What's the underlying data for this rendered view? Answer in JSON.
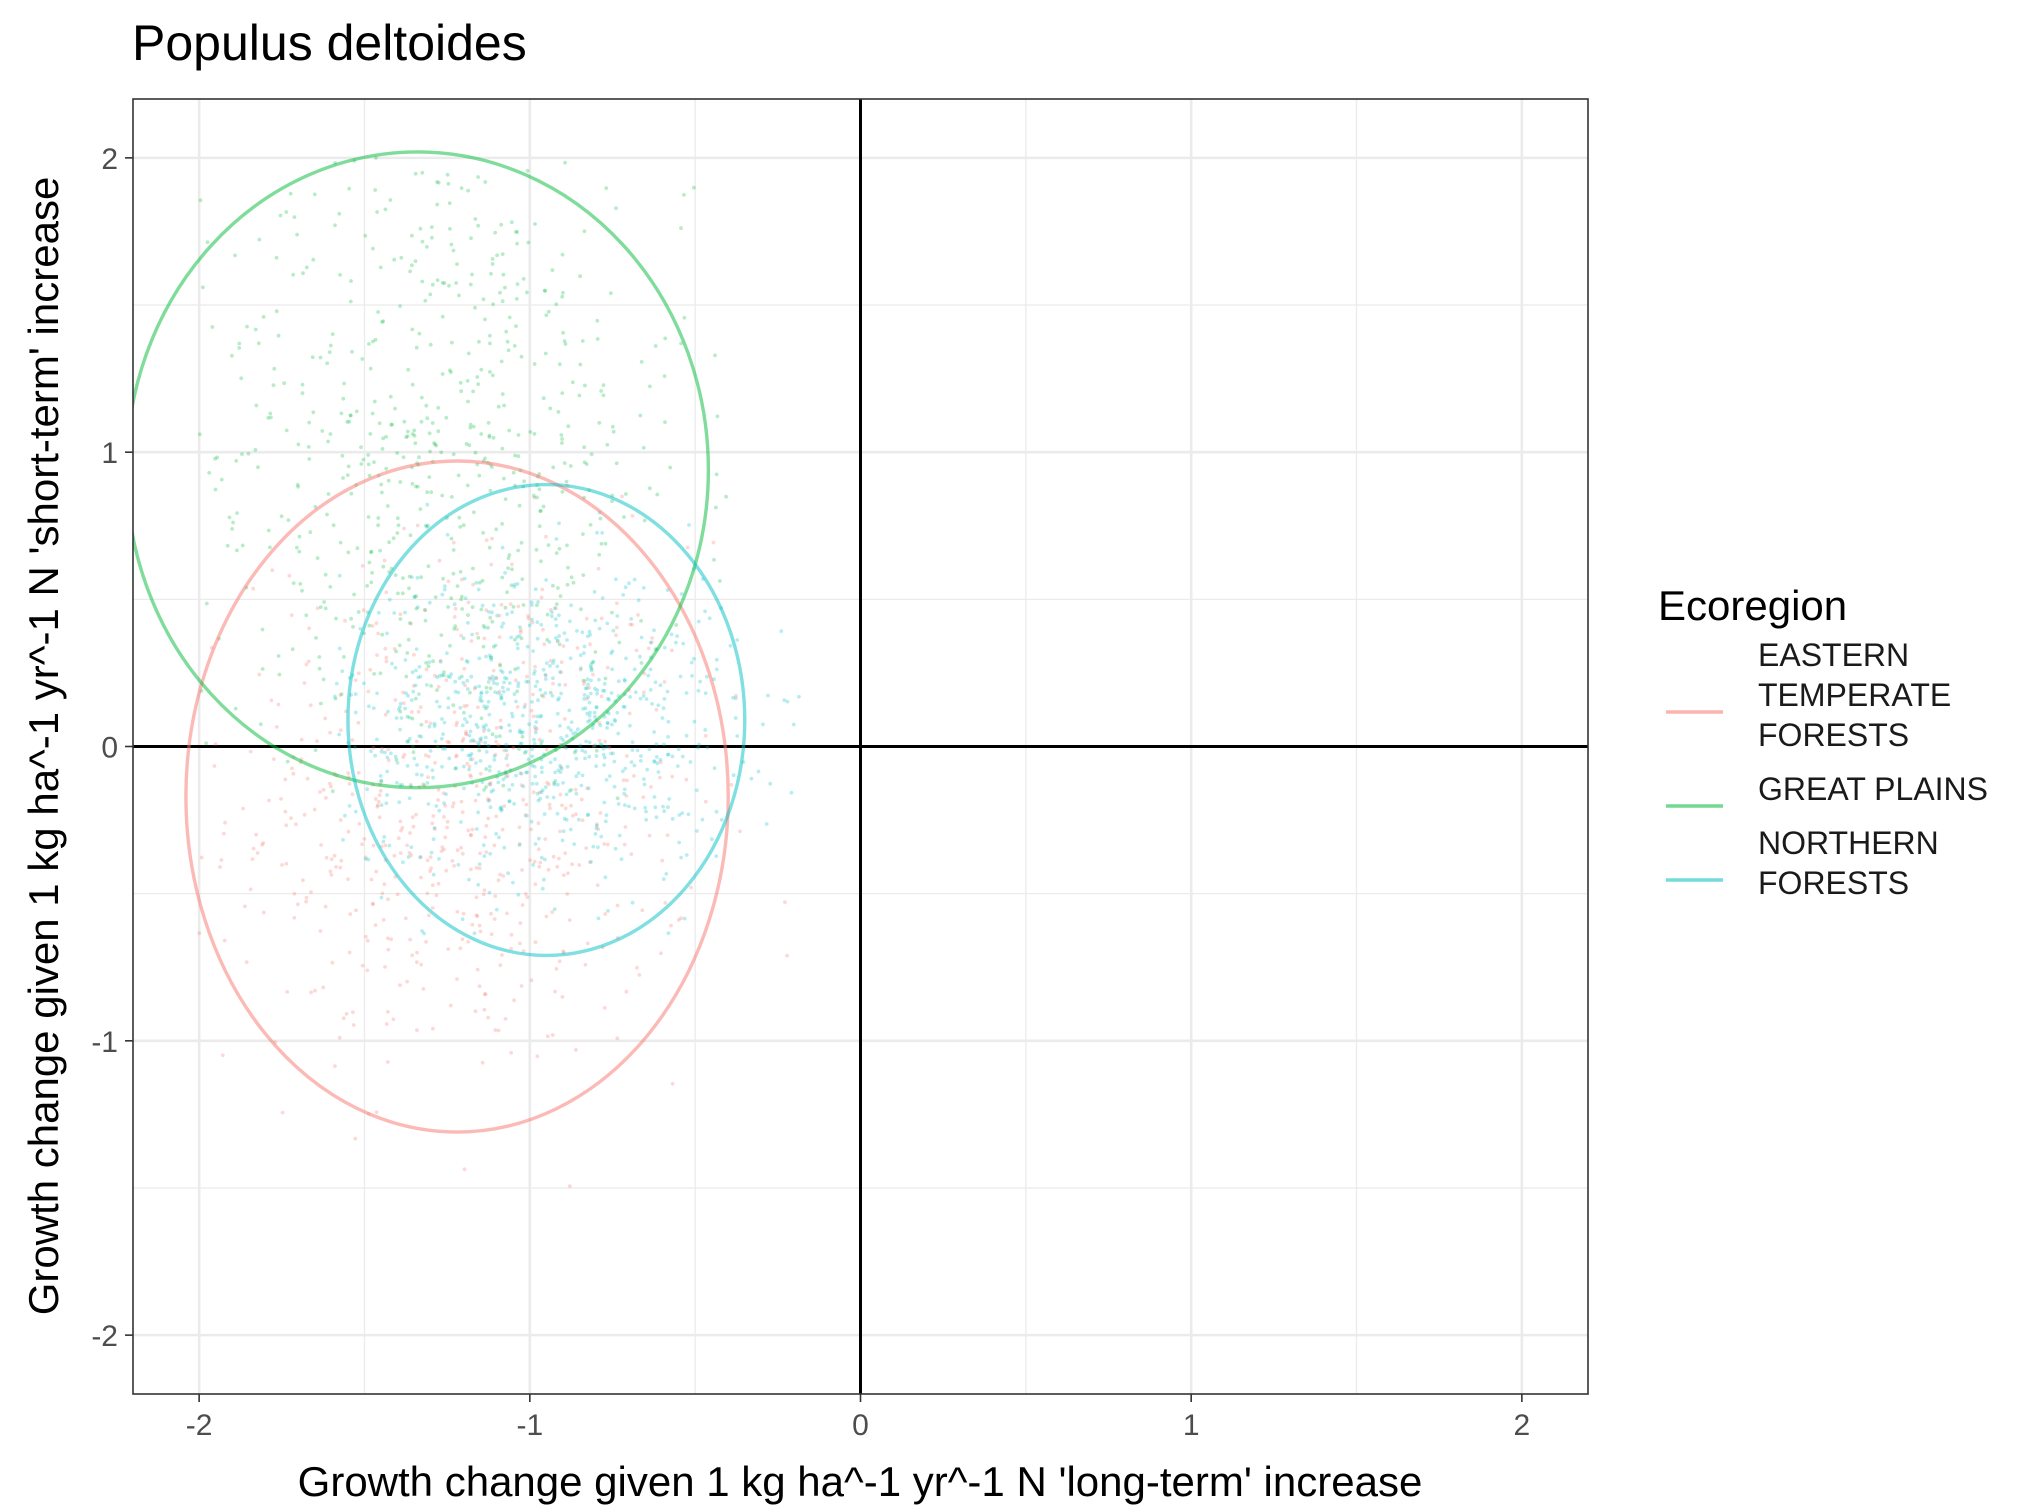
{
  "chart_data": {
    "type": "scatter",
    "title": "Populus deltoides",
    "xlabel": "Growth change given 1 kg ha^-1 yr^-1 N 'long-term' increase",
    "ylabel": "Growth change given 1 kg ha^-1 yr^-1 N 'short-term' increase",
    "xlim": [
      -2.2,
      2.2
    ],
    "ylim": [
      -2.2,
      2.2
    ],
    "x_ticks": [
      -2,
      -1,
      0,
      1,
      2
    ],
    "y_ticks": [
      -2,
      -1,
      0,
      1,
      2
    ],
    "x_tick_labels": [
      "-2",
      "-1",
      "0",
      "1",
      "2"
    ],
    "y_tick_labels": [
      "-2",
      "-1",
      "0",
      "1",
      "2"
    ],
    "grid": true,
    "reference_lines": {
      "x": 0,
      "y": 0
    },
    "legend": {
      "title": "Ecoregion",
      "position": "right",
      "entries": [
        {
          "label_lines": [
            "EASTERN",
            "TEMPERATE",
            "FORESTS"
          ],
          "color": "#F8766D"
        },
        {
          "label_lines": [
            "GREAT PLAINS"
          ],
          "color": "#00BA38"
        },
        {
          "label_lines": [
            "NORTHERN",
            "FORESTS"
          ],
          "color": "#00BFC4"
        }
      ]
    },
    "series": [
      {
        "name": "EASTERN TEMPERATE FORESTS",
        "color": "#F8766D",
        "point_cloud": {
          "x_range": [
            -2.0,
            -0.2
          ],
          "y_range": [
            -1.6,
            0.9
          ],
          "center": [
            -1.2,
            -0.2
          ],
          "spread": [
            0.35,
            0.45
          ],
          "n": 600
        },
        "ellipse": {
          "center": [
            -1.22,
            -0.17
          ],
          "radius_x": 0.82,
          "radius_y": 1.14
        }
      },
      {
        "name": "GREAT PLAINS",
        "color": "#00BA38",
        "point_cloud": {
          "x_range": [
            -2.0,
            -0.4
          ],
          "y_range": [
            -0.2,
            2.0
          ],
          "center": [
            -1.28,
            0.95
          ],
          "spread": [
            0.38,
            0.6
          ],
          "n": 650
        },
        "ellipse": {
          "center": [
            -1.34,
            0.94
          ],
          "radius_x": 0.88,
          "radius_y": 1.08
        }
      },
      {
        "name": "NORTHERN FORESTS",
        "color": "#00BFC4",
        "point_cloud": {
          "x_range": [
            -1.6,
            -0.15
          ],
          "y_range": [
            -0.65,
            0.85
          ],
          "center": [
            -0.97,
            0.08
          ],
          "spread": [
            0.3,
            0.27
          ],
          "n": 750
        },
        "ellipse": {
          "center": [
            -0.95,
            0.09
          ],
          "radius_x": 0.6,
          "radius_y": 0.8
        }
      }
    ]
  }
}
